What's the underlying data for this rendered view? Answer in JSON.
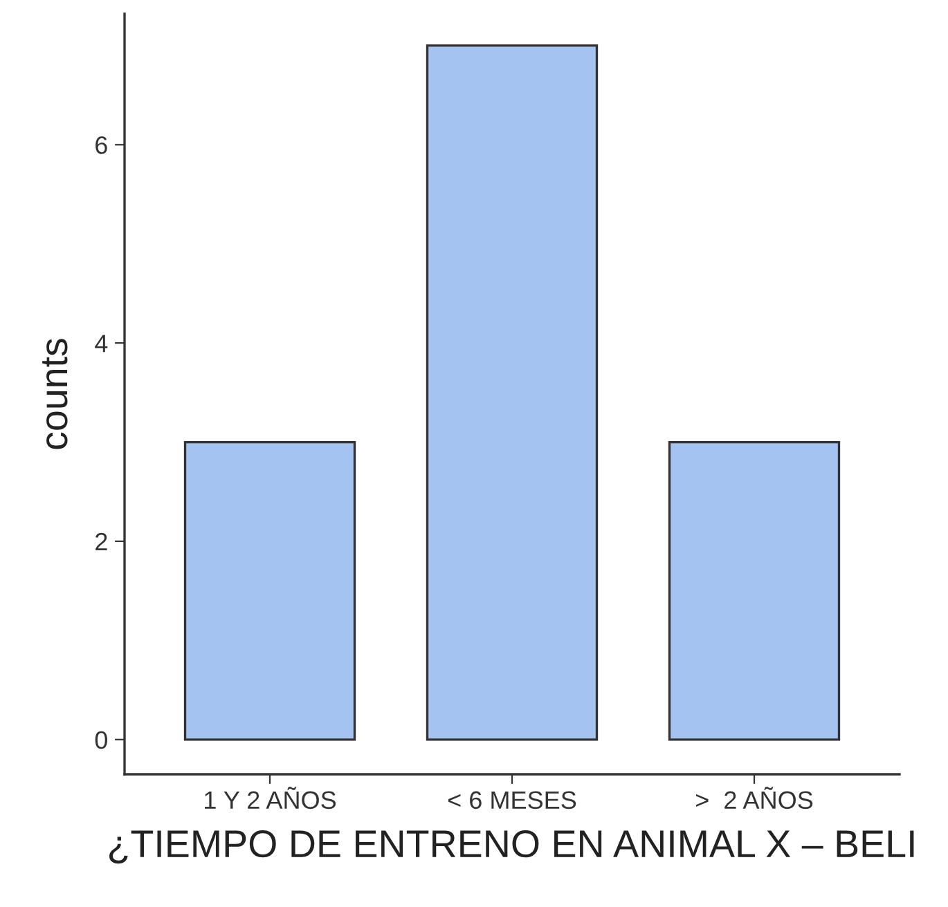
{
  "chart_data": {
    "type": "bar",
    "xlabel": "¿TIEMPO DE ENTRENO EN ANIMAL X – BELI",
    "ylabel": "counts",
    "categories": [
      "1 Y 2 AÑOS",
      "< 6 MESES",
      ">  2 AÑOS"
    ],
    "values": [
      3,
      7,
      3
    ],
    "color": "#a4c3f0",
    "ylim": [
      -0.35,
      7.32
    ],
    "yticks": [
      0,
      2,
      4,
      6
    ],
    "grid": false,
    "legend": false
  }
}
